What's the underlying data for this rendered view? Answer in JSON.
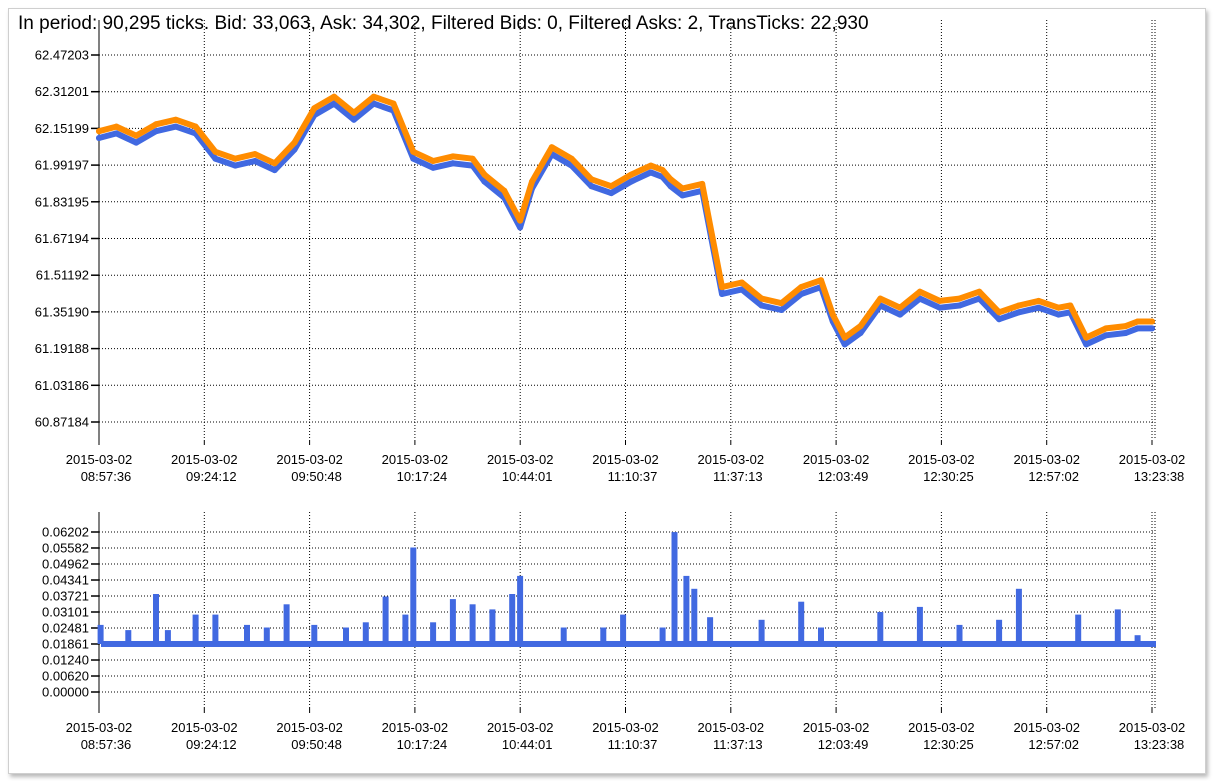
{
  "title": "In period: 90,295 ticks. Bid: 33,063, Ask: 34,302, Filtered Bids: 0, Filtered Asks: 2, TransTicks: 22,930",
  "colors": {
    "bid": "#4169E1",
    "ask": "#FF8C00",
    "spread": "#4169E1",
    "grid": "#000000"
  },
  "x_ticks": [
    [
      "2015-03-02",
      "08:57:36"
    ],
    [
      "2015-03-02",
      "09:24:12"
    ],
    [
      "2015-03-02",
      "09:50:48"
    ],
    [
      "2015-03-02",
      "10:17:24"
    ],
    [
      "2015-03-02",
      "10:44:01"
    ],
    [
      "2015-03-02",
      "11:10:37"
    ],
    [
      "2015-03-02",
      "11:37:13"
    ],
    [
      "2015-03-02",
      "12:03:49"
    ],
    [
      "2015-03-02",
      "12:30:25"
    ],
    [
      "2015-03-02",
      "12:57:02"
    ],
    [
      "2015-03-02",
      "13:23:38"
    ]
  ],
  "chart_data": [
    {
      "type": "line",
      "xlabel": "",
      "ylabel": "",
      "grid": true,
      "xlim": [
        "08:57:36",
        "13:23:38"
      ],
      "ylim": [
        60.87184,
        62.47203
      ],
      "y_ticks": [
        "62.47203",
        "62.31201",
        "62.15199",
        "61.99197",
        "61.83195",
        "61.67194",
        "61.51192",
        "61.35190",
        "61.19188",
        "61.03186",
        "60.87184"
      ],
      "x": [
        "08:57:36",
        "09:02",
        "09:07",
        "09:12",
        "09:17",
        "09:22",
        "09:27",
        "09:32",
        "09:37",
        "09:42",
        "09:47",
        "09:52",
        "09:57",
        "10:02",
        "10:07",
        "10:12",
        "10:17",
        "10:22",
        "10:27",
        "10:32",
        "10:35",
        "10:40",
        "10:44",
        "10:47",
        "10:52",
        "10:57",
        "11:02",
        "11:07",
        "11:12",
        "11:17",
        "11:20",
        "11:22",
        "11:25",
        "11:30",
        "11:35",
        "11:40",
        "11:45",
        "11:50",
        "11:55",
        "12:00",
        "12:03",
        "12:06",
        "12:10",
        "12:15",
        "12:20",
        "12:25",
        "12:30",
        "12:35",
        "12:40",
        "12:45",
        "12:50",
        "12:55",
        "13:00",
        "13:03",
        "13:07",
        "13:12",
        "13:17",
        "13:20",
        "13:23:38"
      ],
      "series": [
        {
          "values": [
            62.11,
            62.13,
            62.09,
            62.14,
            62.16,
            62.13,
            62.02,
            61.99,
            62.01,
            61.97,
            62.06,
            62.21,
            62.26,
            62.19,
            62.26,
            62.23,
            62.02,
            61.98,
            62.0,
            61.99,
            61.92,
            61.85,
            61.72,
            61.89,
            62.04,
            61.99,
            61.9,
            61.87,
            61.92,
            61.96,
            61.94,
            61.9,
            61.86,
            61.88,
            61.43,
            61.45,
            61.38,
            61.36,
            61.43,
            61.46,
            61.31,
            61.21,
            61.26,
            61.38,
            61.34,
            61.41,
            61.37,
            61.38,
            61.41,
            61.32,
            61.35,
            61.37,
            61.34,
            61.35,
            61.21,
            61.25,
            61.26,
            61.28,
            61.28
          ]
        },
        {
          "values": [
            62.14,
            62.16,
            62.12,
            62.17,
            62.19,
            62.16,
            62.05,
            62.02,
            62.04,
            62.0,
            62.09,
            62.24,
            62.29,
            62.22,
            62.29,
            62.26,
            62.05,
            62.01,
            62.03,
            62.02,
            61.95,
            61.88,
            61.75,
            61.92,
            62.07,
            62.02,
            61.93,
            61.9,
            61.95,
            61.99,
            61.97,
            61.93,
            61.89,
            61.91,
            61.46,
            61.48,
            61.41,
            61.39,
            61.46,
            61.49,
            61.34,
            61.24,
            61.29,
            61.41,
            61.37,
            61.44,
            61.4,
            61.41,
            61.44,
            61.35,
            61.38,
            61.4,
            61.37,
            61.38,
            61.24,
            61.28,
            61.29,
            61.31,
            61.31
          ]
        }
      ]
    },
    {
      "type": "bar",
      "xlabel": "",
      "ylabel": "",
      "grid": true,
      "xlim": [
        "08:57:36",
        "13:23:38"
      ],
      "ylim": [
        0.0,
        0.06202
      ],
      "y_ticks": [
        "0.06202",
        "0.05582",
        "0.04962",
        "0.04341",
        "0.03721",
        "0.03101",
        "0.02481",
        "0.01861",
        "0.01240",
        "0.00620",
        "0.00000"
      ],
      "x": [
        "08:58",
        "09:05",
        "09:12",
        "09:15",
        "09:22",
        "09:27",
        "09:35",
        "09:40",
        "09:45",
        "09:52",
        "10:00",
        "10:05",
        "10:10",
        "10:15",
        "10:17",
        "10:22",
        "10:27",
        "10:32",
        "10:37",
        "10:42",
        "10:44",
        "10:55",
        "11:05",
        "11:10",
        "11:20",
        "11:23",
        "11:26",
        "11:28",
        "11:32",
        "11:45",
        "11:55",
        "12:00",
        "12:15",
        "12:25",
        "12:35",
        "12:45",
        "12:50",
        "13:05",
        "13:15",
        "13:20"
      ],
      "values": [
        0.026,
        0.024,
        0.038,
        0.024,
        0.03,
        0.03,
        0.026,
        0.025,
        0.034,
        0.026,
        0.025,
        0.027,
        0.037,
        0.03,
        0.056,
        0.027,
        0.036,
        0.034,
        0.032,
        0.038,
        0.045,
        0.025,
        0.025,
        0.03,
        0.025,
        0.062,
        0.045,
        0.04,
        0.029,
        0.028,
        0.035,
        0.025,
        0.031,
        0.033,
        0.026,
        0.028,
        0.04,
        0.03,
        0.032,
        0.022
      ]
    }
  ]
}
